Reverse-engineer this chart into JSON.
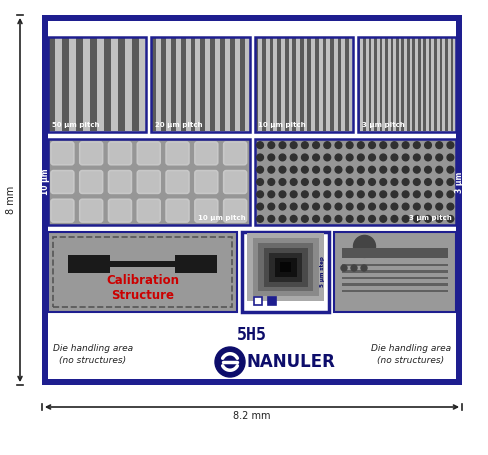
{
  "bg_color": "#ffffff",
  "navy": "#1e1e8f",
  "dark_navy": "#0d0d6b",
  "red": "#cc0000",
  "panel_light_gray": "#b0b0b0",
  "panel_dark_gray": "#888888",
  "stripe_dark": "#5a5a5a",
  "stripe_light": "#c8c8c8",
  "dot_bg": "#909090",
  "sq_bg": "#909090",
  "title_labels": [
    "50 µm",
    "20 µm",
    "10 µm",
    "3 µm"
  ],
  "pitch_labels": [
    "50 µm pitch",
    "20 µm pitch",
    "10 µm pitch",
    "3 µm pitch"
  ],
  "middle_labels": [
    "10 µm pitch",
    "3 µm pitch"
  ],
  "side_label_left": "10 µm",
  "side_label_right": "3 µm",
  "model_text": "5H5",
  "brand_text": "NANULER",
  "die_handling_text": "Die handling area\n(no structures)",
  "calibration_text": "Calibration\nStructure",
  "dim_left": "8 mm",
  "dim_bottom": "8.2 mm"
}
